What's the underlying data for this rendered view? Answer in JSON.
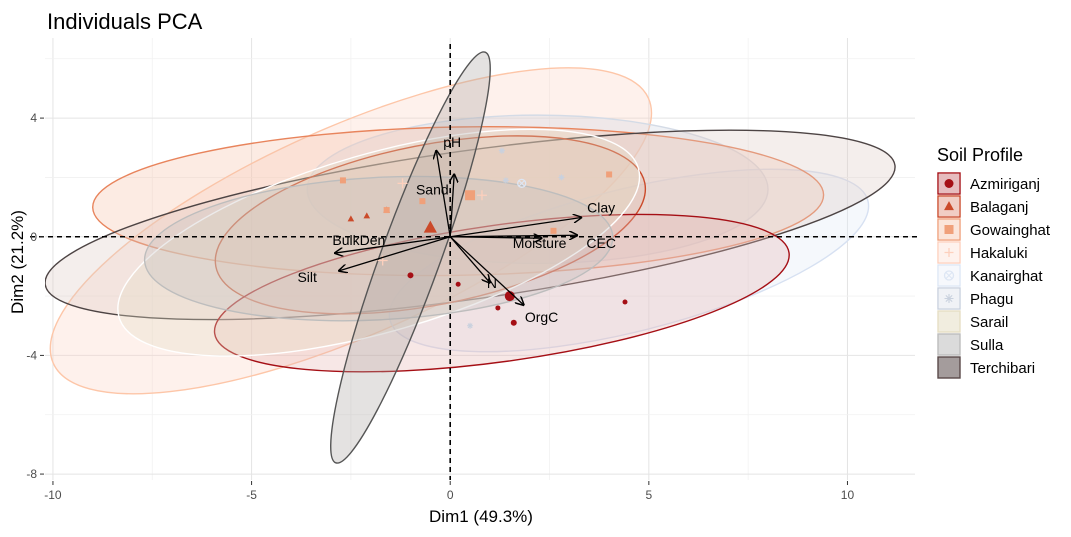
{
  "chart_data": {
    "type": "scatter",
    "title": "Individuals PCA",
    "xlabel": "Dim1 (49.3%)",
    "ylabel": "Dim2 (21.2%)",
    "xlim": [
      -10.2,
      11.7
    ],
    "ylim": [
      -8.2,
      6.7
    ],
    "x_ticks": [
      -10,
      -5,
      0,
      5,
      10
    ],
    "x_tick_labels": [
      "-10",
      "-5",
      "0",
      "5",
      "10"
    ],
    "y_ticks": [
      -8,
      -4,
      0,
      4
    ],
    "y_tick_labels": [
      "-8",
      "-4",
      "0",
      "4"
    ],
    "grid": true,
    "legend": {
      "title": "Soil Profile",
      "position": "right",
      "entries": [
        {
          "name": "Azmiriganj",
          "color": "#a50f15",
          "shape": "circle"
        },
        {
          "name": "Balaganj",
          "color": "#cb4a2a",
          "shape": "triangle"
        },
        {
          "name": "Gowainghat",
          "color": "#f0a07a",
          "shape": "square"
        },
        {
          "name": "Hakaluki",
          "color": "#fdd0bd",
          "shape": "plus"
        },
        {
          "name": "Kanairghat",
          "color": "#dde6f4",
          "shape": "circle-cross"
        },
        {
          "name": "Phagu",
          "color": "#c9d1de",
          "shape": "asterisk"
        },
        {
          "name": "Sarail",
          "color": "#e6dfc4",
          "shape": "box"
        },
        {
          "name": "Sulla",
          "color": "#bdbdbd",
          "shape": "box"
        },
        {
          "name": "Terchibari",
          "color": "#5a4a4a",
          "shape": "box"
        }
      ]
    },
    "ellipses": [
      {
        "name": "Hakaluki",
        "cx": -2.5,
        "cy": 0.2,
        "rx": 8.2,
        "ry": 3.5,
        "angle": -24,
        "stroke": "#fdc6a8",
        "fill": "#fbd5c3"
      },
      {
        "name": "Kanairghat",
        "cx": 4.5,
        "cy": -0.8,
        "rx": 6.2,
        "ry": 2.4,
        "angle": -14,
        "stroke": "#d7e1f2",
        "fill": "#dfe8f6"
      },
      {
        "name": "Phagu",
        "cx": 2.2,
        "cy": 1.6,
        "rx": 5.8,
        "ry": 2.5,
        "angle": 0,
        "stroke": "#d4dbe6",
        "fill": "#cfd6e2"
      },
      {
        "name": "Gowainghat",
        "cx": 0.2,
        "cy": 1.2,
        "rx": 9.2,
        "ry": 2.5,
        "angle": -1,
        "stroke": "#e8845c",
        "fill": "#f5c2a8"
      },
      {
        "name": "Terchibari",
        "cx": 0.5,
        "cy": 0.4,
        "rx": 10.8,
        "ry": 2.5,
        "angle": -8,
        "stroke": "#4d4444",
        "fill": "#dcc9c4"
      },
      {
        "name": "Balaganj",
        "cx": -0.5,
        "cy": 0.4,
        "rx": 5.5,
        "ry": 2.7,
        "angle": -11,
        "stroke": "#cb4a2a",
        "fill": "#e3b8a8"
      },
      {
        "name": "Azmiriganj",
        "cx": 1.3,
        "cy": -1.9,
        "rx": 7.3,
        "ry": 2.3,
        "angle": -8,
        "stroke": "#a50f15",
        "fill": "#e5b4b0"
      },
      {
        "name": "Sarail",
        "cx": -1.8,
        "cy": -0.2,
        "rx": 6.8,
        "ry": 3.0,
        "angle": -16,
        "stroke": "#ffffff",
        "fill": "#e2ddc5"
      },
      {
        "name": "Sulla",
        "cx": -1.8,
        "cy": -0.4,
        "rx": 5.9,
        "ry": 2.4,
        "angle": -3,
        "stroke": "#bdbdbd",
        "fill": "#c4c2c0"
      },
      {
        "name": "Sulla-narrow",
        "cx": -1.0,
        "cy": -0.7,
        "rx": 5.5,
        "ry": 1.0,
        "angle": -70,
        "stroke": "#555555",
        "fill": "#aaa6a2"
      }
    ],
    "points": [
      {
        "group": "Azmiriganj",
        "x": -1.0,
        "y": -1.3,
        "size": 3
      },
      {
        "group": "Azmiriganj",
        "x": 0.2,
        "y": -1.6,
        "size": 2.5
      },
      {
        "group": "Azmiriganj",
        "x": 1.2,
        "y": -2.4,
        "size": 2.5
      },
      {
        "group": "Azmiriganj",
        "x": 1.6,
        "y": -2.9,
        "size": 3
      },
      {
        "group": "Azmiriganj",
        "x": 4.4,
        "y": -2.2,
        "size": 2.5
      },
      {
        "group": "Azmiriganj",
        "x": 1.5,
        "y": -2.0,
        "size": 5
      },
      {
        "group": "Balaganj",
        "x": -2.5,
        "y": 0.6,
        "size": 3
      },
      {
        "group": "Balaganj",
        "x": -2.1,
        "y": 0.7,
        "size": 3
      },
      {
        "group": "Balaganj",
        "x": -1.6,
        "y": 0.9,
        "size": 3
      },
      {
        "group": "Balaganj",
        "x": -0.5,
        "y": 0.3,
        "size": 6
      },
      {
        "group": "Gowainghat",
        "x": -2.7,
        "y": 1.9,
        "size": 3
      },
      {
        "group": "Gowainghat",
        "x": -1.6,
        "y": 0.9,
        "size": 3
      },
      {
        "group": "Gowainghat",
        "x": -0.7,
        "y": 1.2,
        "size": 3
      },
      {
        "group": "Gowainghat",
        "x": 4.0,
        "y": 2.1,
        "size": 3
      },
      {
        "group": "Gowainghat",
        "x": 2.6,
        "y": 0.2,
        "size": 3
      },
      {
        "group": "Gowainghat",
        "x": 0.5,
        "y": 1.4,
        "size": 5
      },
      {
        "group": "Hakaluki",
        "x": -1.7,
        "y": -0.8,
        "size": 5
      },
      {
        "group": "Hakaluki",
        "x": -1.2,
        "y": 1.8,
        "size": 5
      },
      {
        "group": "Hakaluki",
        "x": 0.8,
        "y": 1.4,
        "size": 5
      },
      {
        "group": "Kanairghat",
        "x": 1.8,
        "y": 1.8,
        "size": 4
      },
      {
        "group": "Phagu",
        "x": 1.3,
        "y": 2.9,
        "size": 3
      },
      {
        "group": "Phagu",
        "x": 2.8,
        "y": 2.0,
        "size": 3
      },
      {
        "group": "Phagu",
        "x": 1.4,
        "y": 1.9,
        "size": 3
      },
      {
        "group": "Phagu",
        "x": 0.5,
        "y": -3.0,
        "size": 3
      }
    ],
    "variables": [
      {
        "name": "pH",
        "x": -0.35,
        "y": 2.9,
        "label_x": 0.05,
        "label_y": 3.15
      },
      {
        "name": "Sand",
        "x": 0.1,
        "y": 2.1,
        "label_x": -0.45,
        "label_y": 1.55
      },
      {
        "name": "Clay",
        "x": 3.3,
        "y": 0.65,
        "label_x": 3.8,
        "label_y": 0.95
      },
      {
        "name": "Moisture",
        "x": 2.3,
        "y": -0.05,
        "label_x": 2.25,
        "label_y": -0.25
      },
      {
        "name": "CEC",
        "x": 3.2,
        "y": 0.05,
        "label_x": 3.8,
        "label_y": -0.25
      },
      {
        "name": "BulkDen",
        "x": -2.9,
        "y": -0.55,
        "label_x": -2.3,
        "label_y": -0.15
      },
      {
        "name": "Silt",
        "x": -2.8,
        "y": -1.15,
        "label_x": -3.6,
        "label_y": -1.4
      },
      {
        "name": "N",
        "x": 1.0,
        "y": -1.55,
        "label_x": 1.05,
        "label_y": -1.6
      },
      {
        "name": "OrgC",
        "x": 1.85,
        "y": -2.3,
        "label_x": 2.3,
        "label_y": -2.75
      }
    ]
  }
}
